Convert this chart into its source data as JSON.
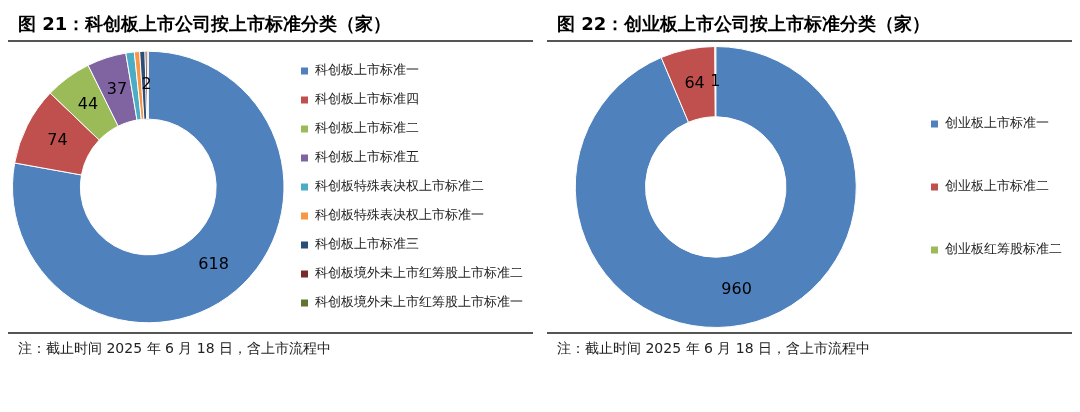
{
  "chart_data": [
    {
      "type": "donut",
      "title": "图 21：科创板上市公司按上市标准分类（家）",
      "categories": [
        "科创板上市标准一",
        "科创板上市标准四",
        "科创板上市标准二",
        "科创板上市标准五",
        "科创板特殊表决权上市标准二",
        "科创板特殊表决权上市标准一",
        "科创板上市标准三",
        "科创板境外未上市红筹股上市标准二",
        "科创板境外未上市红筹股上市标准一"
      ],
      "values": [
        618,
        74,
        44,
        37,
        8,
        5,
        5,
        2,
        1
      ],
      "value_labels": [
        "618",
        "74",
        "44",
        "37",
        null,
        null,
        null,
        "2",
        null
      ],
      "colors": [
        "#4f81bd",
        "#c0504d",
        "#9bbb59",
        "#8064a2",
        "#4bacc6",
        "#f79646",
        "#2c4d75",
        "#772c2a",
        "#5f7530"
      ],
      "legend": "right",
      "annotations": [
        "注：截止时间 2025 年 6 月 18 日，含上市流程中"
      ]
    },
    {
      "type": "donut",
      "title": "图 22：创业板上市公司按上市标准分类（家）",
      "categories": [
        "创业板上市标准一",
        "创业板上市标准二",
        "创业板红筹股标准二"
      ],
      "values": [
        960,
        64,
        1
      ],
      "colors": [
        "#4f81bd",
        "#c0504d",
        "#9bbb59"
      ],
      "data_labels": true,
      "legend": "right",
      "annotations": [
        "注：截止时间 2025 年 6 月 18 日，含上市流程中"
      ]
    }
  ]
}
